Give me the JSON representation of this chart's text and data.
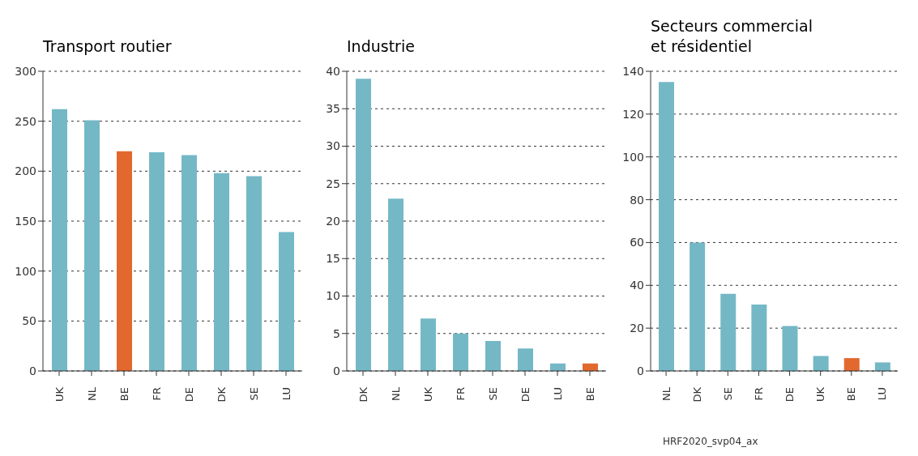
{
  "chart_data": [
    {
      "type": "bar",
      "title": "Transport routier",
      "categories": [
        "UK",
        "NL",
        "BE",
        "FR",
        "DE",
        "DK",
        "SE",
        "LU"
      ],
      "values": [
        262,
        251,
        220,
        219,
        216,
        198,
        195,
        139
      ],
      "colors": [
        "#74b8c6",
        "#74b8c6",
        "#e2682e",
        "#74b8c6",
        "#74b8c6",
        "#74b8c6",
        "#74b8c6",
        "#74b8c6"
      ],
      "ylim": [
        0,
        300
      ],
      "yticks": [
        0,
        50,
        100,
        150,
        200,
        250,
        300
      ],
      "grid": "y"
    },
    {
      "type": "bar",
      "title": "Industrie",
      "categories": [
        "DK",
        "NL",
        "UK",
        "FR",
        "SE",
        "DE",
        "LU",
        "BE"
      ],
      "values": [
        39,
        23,
        7,
        5,
        4,
        3,
        1,
        1
      ],
      "colors": [
        "#74b8c6",
        "#74b8c6",
        "#74b8c6",
        "#74b8c6",
        "#74b8c6",
        "#74b8c6",
        "#74b8c6",
        "#e2682e"
      ],
      "ylim": [
        0,
        40
      ],
      "yticks": [
        0,
        5,
        10,
        15,
        20,
        25,
        30,
        35,
        40
      ],
      "grid": "y"
    },
    {
      "type": "bar",
      "title": "Secteurs commercial et résidentiel",
      "categories": [
        "NL",
        "DK",
        "SE",
        "FR",
        "DE",
        "UK",
        "BE",
        "LU"
      ],
      "values": [
        135,
        60,
        36,
        31,
        21,
        7,
        6,
        4
      ],
      "colors": [
        "#74b8c6",
        "#74b8c6",
        "#74b8c6",
        "#74b8c6",
        "#74b8c6",
        "#74b8c6",
        "#e2682e",
        "#74b8c6"
      ],
      "ylim": [
        0,
        140
      ],
      "yticks": [
        0,
        20,
        40,
        60,
        80,
        100,
        120,
        140
      ],
      "grid": "y",
      "annotations": [
        "HRF2020_svp04_ax"
      ]
    }
  ]
}
